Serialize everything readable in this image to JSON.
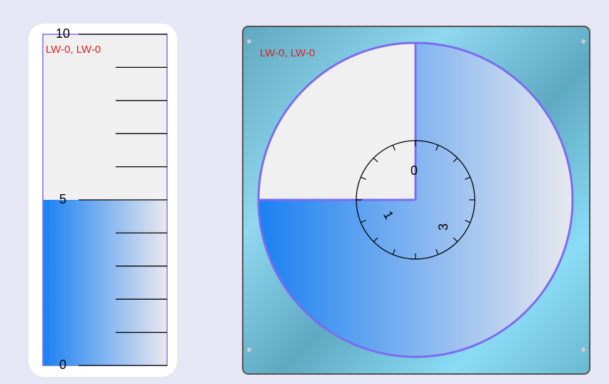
{
  "bar_meter": {
    "label": "LW-0, LW-0",
    "ticks": [
      0,
      5,
      10
    ],
    "value": 5
  },
  "circle_meter": {
    "label": "LW-0, LW-0",
    "fill_percent": 75,
    "dial_labels": [
      0,
      1,
      3
    ]
  }
}
